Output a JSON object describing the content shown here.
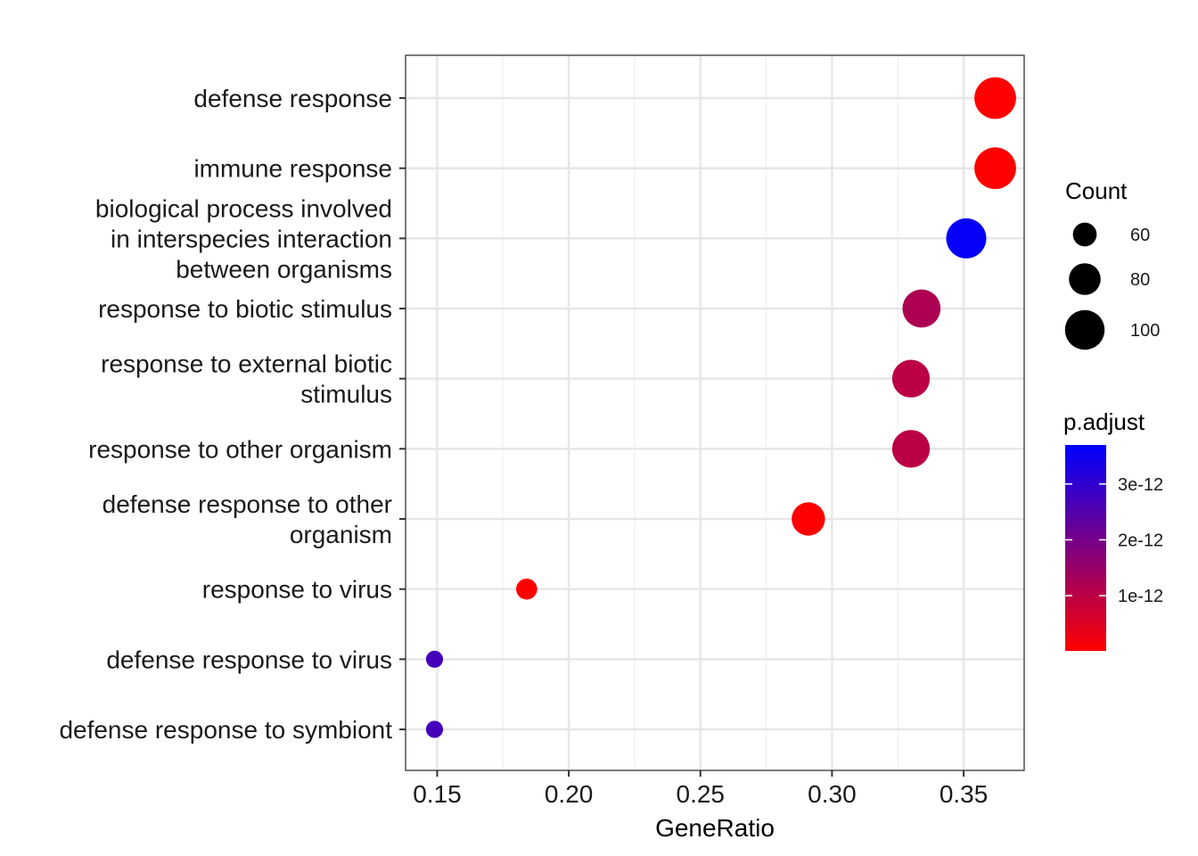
{
  "chart_data": {
    "type": "scatter",
    "xlabel": "GeneRatio",
    "ylabel": "",
    "xlim": [
      0.138,
      0.373
    ],
    "x_ticks": [
      0.15,
      0.2,
      0.25,
      0.3,
      0.35
    ],
    "x_tick_labels": [
      "0.15",
      "0.20",
      "0.25",
      "0.30",
      "0.35"
    ],
    "grid": true,
    "categories": [
      [
        "defense response"
      ],
      [
        "immune response"
      ],
      [
        "biological process involved",
        "in interspecies interaction",
        "between organisms"
      ],
      [
        "response to biotic stimulus"
      ],
      [
        "response to external biotic",
        "stimulus"
      ],
      [
        "response to other organism"
      ],
      [
        "defense response to other",
        "organism"
      ],
      [
        "response to virus"
      ],
      [
        "defense response to virus"
      ],
      [
        "defense response to symbiont"
      ]
    ],
    "points": [
      {
        "x": 0.362,
        "count": 105,
        "p_adjust": 1e-14
      },
      {
        "x": 0.362,
        "count": 105,
        "p_adjust": 1e-14
      },
      {
        "x": 0.351,
        "count": 101,
        "p_adjust": 3.6e-12
      },
      {
        "x": 0.334,
        "count": 96,
        "p_adjust": 1.2e-12
      },
      {
        "x": 0.33,
        "count": 95,
        "p_adjust": 1e-12
      },
      {
        "x": 0.33,
        "count": 95,
        "p_adjust": 1e-12
      },
      {
        "x": 0.291,
        "count": 84,
        "p_adjust": 1e-14
      },
      {
        "x": 0.184,
        "count": 53,
        "p_adjust": 1e-14
      },
      {
        "x": 0.149,
        "count": 43,
        "p_adjust": 2.7e-12
      },
      {
        "x": 0.149,
        "count": 43,
        "p_adjust": 2.7e-12
      }
    ],
    "legend_size": {
      "title": "Count",
      "values": [
        60,
        80,
        100
      ],
      "labels": [
        "60",
        "80",
        "100"
      ]
    },
    "legend_color": {
      "title": "p.adjust",
      "range": [
        1e-14,
        3.7e-12
      ],
      "ticks": [
        1e-12,
        2e-12,
        3e-12
      ],
      "tick_labels": [
        "1e-12",
        "2e-12",
        "3e-12"
      ],
      "low_color": "#ff0000",
      "high_color": "#0000ff"
    },
    "legend_position": "right"
  }
}
